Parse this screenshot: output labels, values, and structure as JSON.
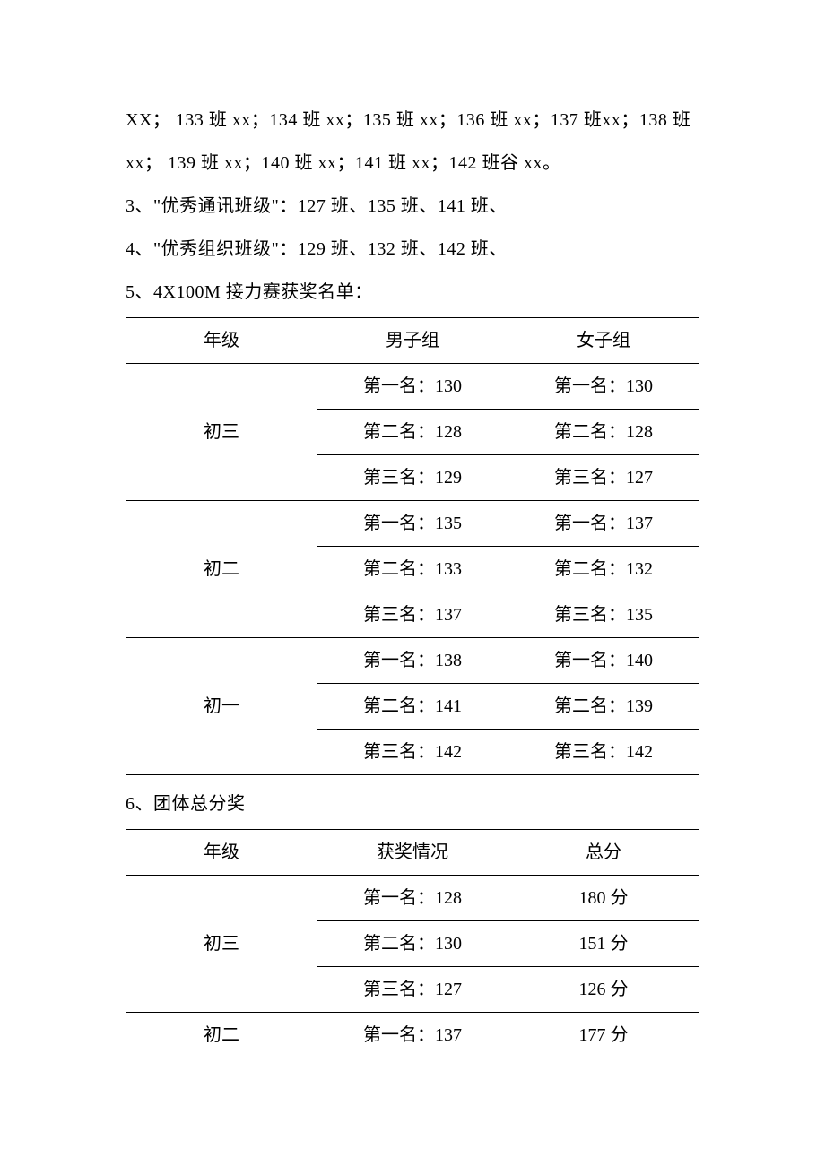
{
  "paragraphs": {
    "p1": "XX； 133 班 xx；134 班 xx；135 班 xx；136 班 xx；137 班xx；138 班",
    "p2": "xx； 139 班 xx；140 班 xx；141 班 xx；142 班谷 xx。",
    "p3": "3、\"优秀通讯班级\"：127 班、135 班、141 班、",
    "p4": "4、\"优秀组织班级\"：129 班、132 班、142 班、",
    "p5": "5、4X100M 接力赛获奖名单：",
    "p6": "6、团体总分奖"
  },
  "table1": {
    "headers": {
      "c1": "年级",
      "c2": "男子组",
      "c3": "女子组"
    },
    "rows": [
      {
        "grade": "初三",
        "male": [
          "第一名：130",
          "第二名：128",
          "第三名：129"
        ],
        "female": [
          "第一名：130",
          "第二名：128",
          "第三名：127"
        ]
      },
      {
        "grade": "初二",
        "male": [
          "第一名：135",
          "第二名：133",
          "第三名：137"
        ],
        "female": [
          "第一名：137",
          "第二名：132",
          "第三名：135"
        ]
      },
      {
        "grade": "初一",
        "male": [
          "第一名：138",
          "第二名：141",
          "第三名：142"
        ],
        "female": [
          "第一名：140",
          "第二名：139",
          "第三名：142"
        ]
      }
    ]
  },
  "table2": {
    "headers": {
      "c1": "年级",
      "c2": "获奖情况",
      "c3": "总分"
    },
    "rows": [
      {
        "grade": "初三",
        "rank": [
          "第一名：128",
          "第二名：130",
          "第三名：127"
        ],
        "score": [
          "180 分",
          "151 分",
          "126 分"
        ]
      },
      {
        "grade": "初二",
        "rank": [
          "第一名：137"
        ],
        "score": [
          "177 分"
        ]
      }
    ]
  }
}
